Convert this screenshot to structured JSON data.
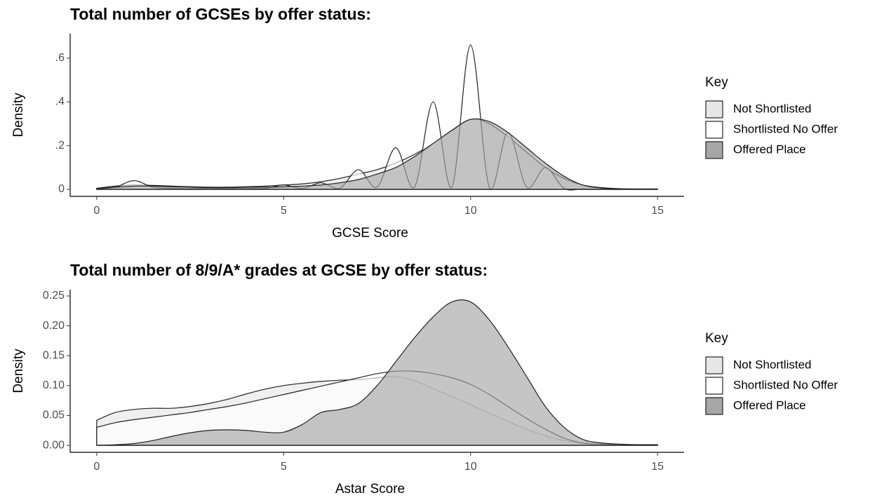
{
  "chart_data": [
    {
      "type": "density",
      "title": "Total number of GCSEs by offer status:",
      "xlabel": "GCSE Score",
      "ylabel": "Density",
      "legend_title": "Key",
      "legend": "right",
      "x": [
        0,
        0.5,
        1,
        1.5,
        2,
        2.5,
        3,
        3.5,
        4,
        4.5,
        5,
        5.5,
        6,
        6.5,
        7,
        7.5,
        8,
        8.5,
        9,
        9.5,
        10,
        10.5,
        11,
        11.5,
        12,
        12.5,
        13,
        13.5,
        14,
        14.5,
        15
      ],
      "series": [
        {
          "name": "Not Shortlisted",
          "color": "#e6e6e6",
          "values": [
            0.005,
            0.015,
            0.02,
            0.018,
            0.015,
            0.012,
            0.01,
            0.01,
            0.012,
            0.015,
            0.02,
            0.025,
            0.035,
            0.05,
            0.07,
            0.09,
            0.12,
            0.16,
            0.21,
            0.27,
            0.32,
            0.3,
            0.24,
            0.17,
            0.1,
            0.05,
            0.02,
            0.008,
            0.003,
            0.002,
            0.002
          ]
        },
        {
          "name": "Shortlisted No Offer",
          "color": "#ffffff",
          "values": [
            0.002,
            0.01,
            0.04,
            0.01,
            0.005,
            0.003,
            0.005,
            0.004,
            0.005,
            0.004,
            0.02,
            0.004,
            0.03,
            0.005,
            0.09,
            0.01,
            0.19,
            0.01,
            0.4,
            0.01,
            0.66,
            0.01,
            0.26,
            0.01,
            0.1,
            0.005,
            0.002,
            0.001,
            0,
            0,
            0
          ]
        },
        {
          "name": "Offered Place",
          "color": "#a6a6a6",
          "values": [
            0.003,
            0.01,
            0.015,
            0.015,
            0.012,
            0.01,
            0.008,
            0.008,
            0.01,
            0.01,
            0.012,
            0.015,
            0.02,
            0.03,
            0.045,
            0.07,
            0.1,
            0.15,
            0.21,
            0.27,
            0.32,
            0.31,
            0.26,
            0.19,
            0.12,
            0.06,
            0.02,
            0.006,
            0.002,
            0.001,
            0.001
          ]
        }
      ],
      "xlim": [
        -0.71,
        15.71
      ],
      "xticks": [
        0,
        5,
        10,
        15
      ],
      "ylim": [
        -0.032,
        0.712
      ],
      "yticks": [
        0,
        {
          "value": 0.2,
          "label": ".2"
        },
        {
          "value": 0.4,
          "label": ".4"
        },
        {
          "value": 0.6,
          "label": ".6"
        }
      ]
    },
    {
      "type": "density",
      "title": "Total number of 8/9/A* grades at GCSE by offer status:",
      "xlabel": "Astar Score",
      "ylabel": "Density",
      "legend_title": "Key",
      "legend": "right",
      "x": [
        0,
        0.5,
        1,
        1.5,
        2,
        2.5,
        3,
        3.5,
        4,
        4.5,
        5,
        5.5,
        6,
        6.5,
        7,
        7.5,
        8,
        8.5,
        9,
        9.5,
        10,
        10.5,
        11,
        11.5,
        12,
        12.5,
        13,
        13.5,
        14,
        14.5,
        15
      ],
      "series": [
        {
          "name": "Not Shortlisted",
          "color": "#e6e6e6",
          "values": [
            0.042,
            0.055,
            0.06,
            0.062,
            0.062,
            0.065,
            0.07,
            0.077,
            0.086,
            0.094,
            0.1,
            0.104,
            0.107,
            0.109,
            0.11,
            0.113,
            0.115,
            0.108,
            0.095,
            0.082,
            0.068,
            0.054,
            0.04,
            0.027,
            0.016,
            0.008,
            0.003,
            0.002,
            0.001,
            0.001,
            0.001
          ]
        },
        {
          "name": "Shortlisted No Offer",
          "color": "#ffffff",
          "values": [
            0.03,
            0.038,
            0.043,
            0.047,
            0.051,
            0.055,
            0.06,
            0.065,
            0.071,
            0.078,
            0.085,
            0.092,
            0.099,
            0.106,
            0.113,
            0.12,
            0.124,
            0.124,
            0.12,
            0.113,
            0.102,
            0.085,
            0.065,
            0.045,
            0.027,
            0.012,
            0.004,
            0.002,
            0.001,
            0.001,
            0.001
          ]
        },
        {
          "name": "Offered Place",
          "color": "#a6a6a6",
          "values": [
            0,
            0.001,
            0.003,
            0.008,
            0.015,
            0.021,
            0.025,
            0.026,
            0.025,
            0.022,
            0.022,
            0.035,
            0.055,
            0.06,
            0.07,
            0.1,
            0.14,
            0.18,
            0.215,
            0.24,
            0.24,
            0.21,
            0.165,
            0.115,
            0.065,
            0.03,
            0.01,
            0.004,
            0.002,
            0.001,
            0.001
          ]
        }
      ],
      "xlim": [
        -0.71,
        15.71
      ],
      "xticks": [
        0,
        5,
        10,
        15
      ],
      "ylim": [
        -0.0117,
        0.2606
      ],
      "yticks": [
        {
          "value": 0,
          "label": "0.00"
        },
        {
          "value": 0.05,
          "label": "0.05"
        },
        {
          "value": 0.1,
          "label": "0.10"
        },
        {
          "value": 0.15,
          "label": "0.15"
        },
        {
          "value": 0.2,
          "label": "0.20"
        },
        {
          "value": 0.25,
          "label": "0.25"
        }
      ]
    }
  ]
}
